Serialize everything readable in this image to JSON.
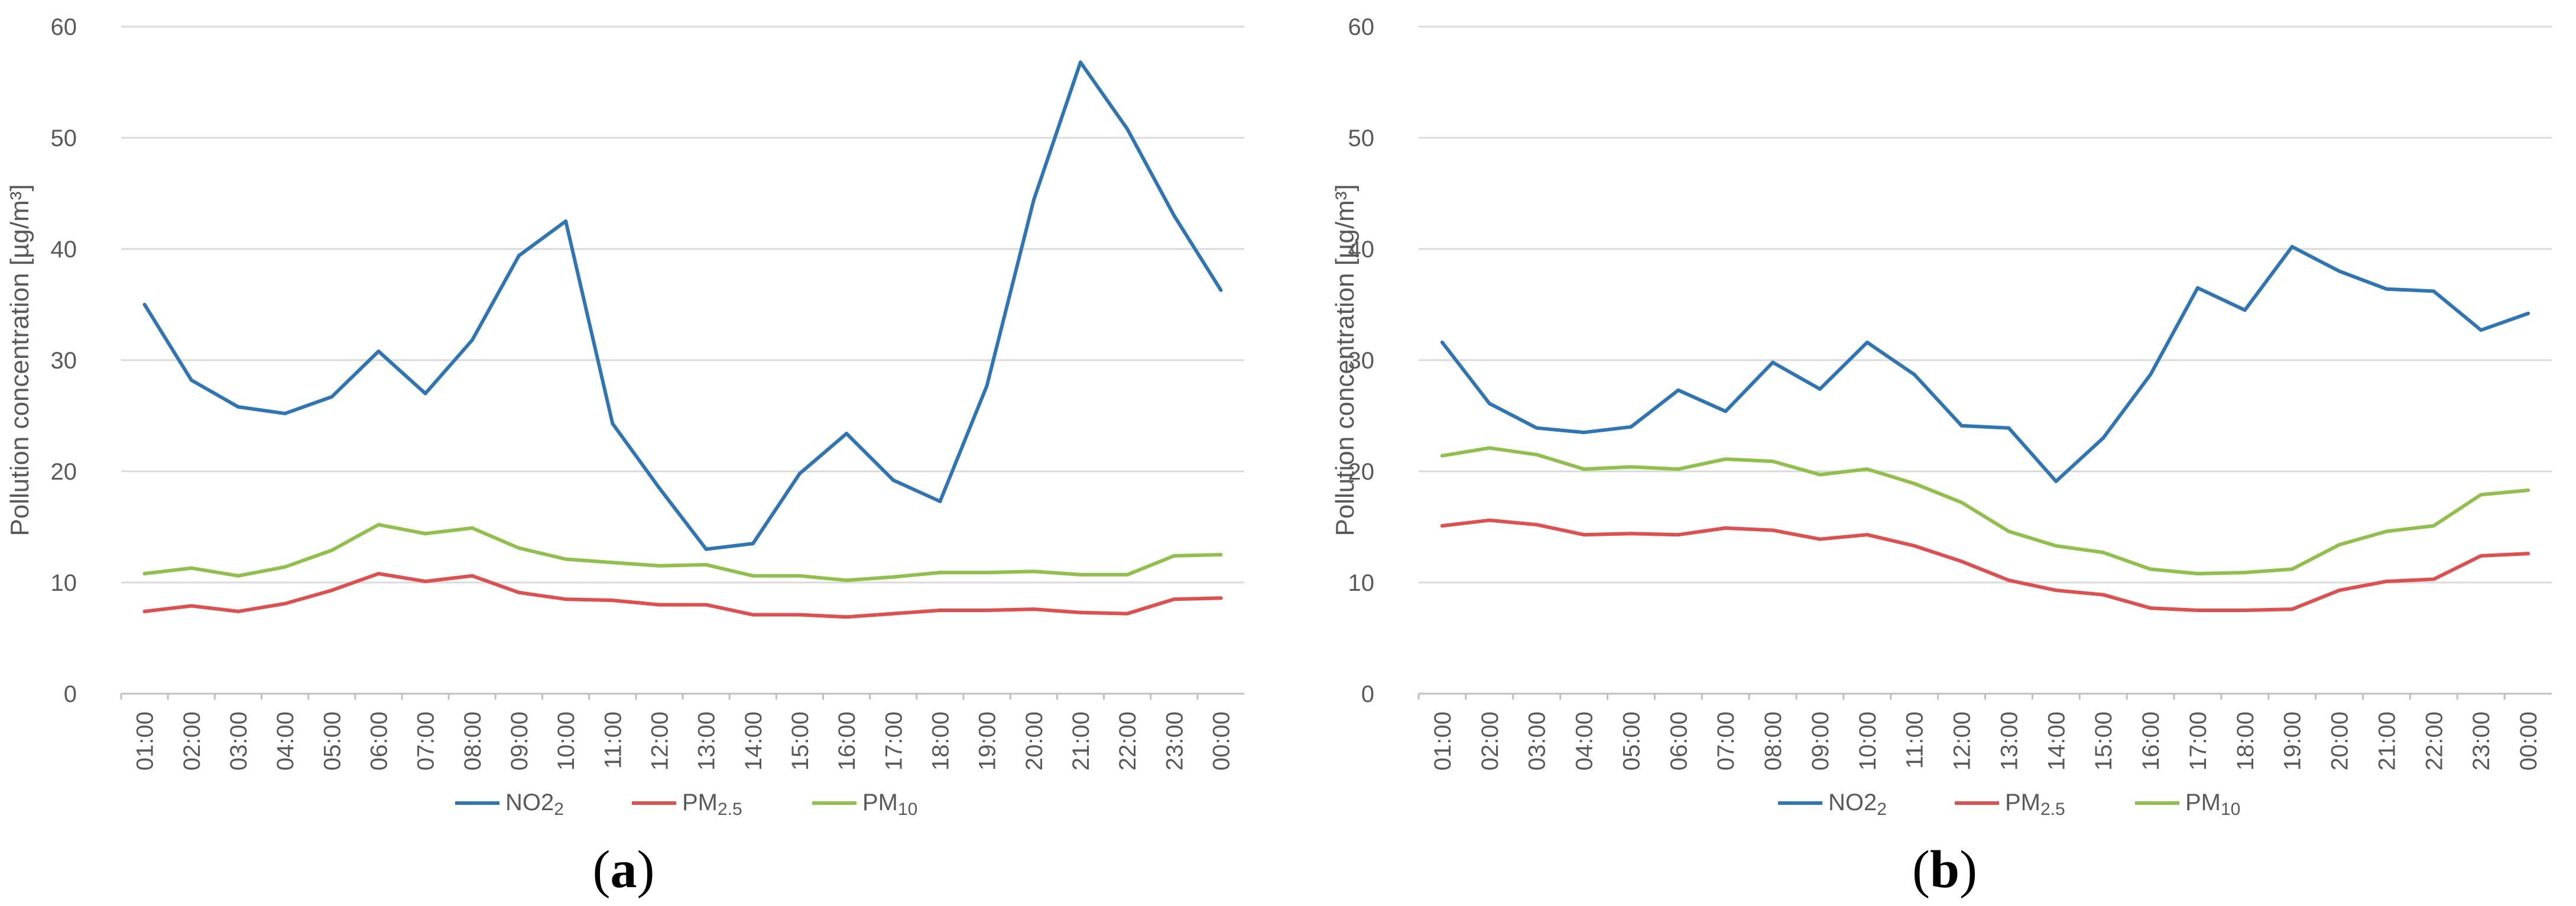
{
  "figure_title": "",
  "colors": {
    "NO2": "#2e75b6",
    "PM2.5": "#e04e4e",
    "PM10": "#8fc04a"
  },
  "legend": [
    {
      "key": "NO2",
      "main": "NO2",
      "sub": "2"
    },
    {
      "key": "PM2.5",
      "main": "PM",
      "sub": "2.5"
    },
    {
      "key": "PM10",
      "main": "PM",
      "sub": "10"
    }
  ],
  "chart_data": [
    {
      "type": "line",
      "panel_label": "a",
      "title": "",
      "xlabel": "",
      "ylabel": "Pollution concentration [µg/m³]",
      "ylim": [
        0,
        60
      ],
      "yticks": [
        0,
        10,
        20,
        30,
        40,
        50,
        60
      ],
      "grid": true,
      "legend_position": "bottom",
      "categories": [
        "01:00",
        "02:00",
        "03:00",
        "04:00",
        "05:00",
        "06:00",
        "07:00",
        "08:00",
        "09:00",
        "10:00",
        "11:00",
        "12:00",
        "13:00",
        "14:00",
        "15:00",
        "16:00",
        "17:00",
        "18:00",
        "19:00",
        "20:00",
        "21:00",
        "22:00",
        "23:00",
        "00:00"
      ],
      "series": [
        {
          "name": "NO2",
          "values": [
            35.0,
            28.2,
            25.8,
            25.2,
            26.7,
            30.8,
            27.0,
            31.8,
            39.4,
            42.5,
            24.3,
            18.5,
            13.0,
            13.5,
            19.8,
            23.4,
            19.2,
            17.3,
            27.7,
            44.4,
            56.8,
            50.8,
            43.0,
            36.3
          ]
        },
        {
          "name": "PM2.5",
          "values": [
            7.4,
            7.9,
            7.4,
            8.1,
            9.3,
            10.8,
            10.1,
            10.6,
            9.1,
            8.5,
            8.4,
            8.0,
            8.0,
            7.1,
            7.1,
            6.9,
            7.2,
            7.5,
            7.5,
            7.6,
            7.3,
            7.2,
            8.5,
            8.6
          ]
        },
        {
          "name": "PM10",
          "values": [
            10.8,
            11.3,
            10.6,
            11.4,
            12.9,
            15.2,
            14.4,
            14.9,
            13.1,
            12.1,
            11.8,
            11.5,
            11.6,
            10.6,
            10.6,
            10.2,
            10.5,
            10.9,
            10.9,
            11.0,
            10.7,
            10.7,
            12.4,
            12.5
          ]
        }
      ]
    },
    {
      "type": "line",
      "panel_label": "b",
      "title": "",
      "xlabel": "",
      "ylabel": "Pollution concentration [µg/m³]",
      "ylim": [
        0,
        60
      ],
      "yticks": [
        0,
        10,
        20,
        30,
        40,
        50,
        60
      ],
      "grid": true,
      "legend_position": "bottom",
      "categories": [
        "01:00",
        "02:00",
        "03:00",
        "04:00",
        "05:00",
        "06:00",
        "07:00",
        "08:00",
        "09:00",
        "10:00",
        "11:00",
        "12:00",
        "13:00",
        "14:00",
        "15:00",
        "16:00",
        "17:00",
        "18:00",
        "19:00",
        "20:00",
        "21:00",
        "22:00",
        "23:00",
        "00:00"
      ],
      "series": [
        {
          "name": "NO2",
          "values": [
            31.6,
            26.1,
            23.9,
            23.5,
            24.0,
            27.3,
            25.4,
            29.8,
            27.4,
            31.6,
            28.7,
            24.1,
            23.9,
            19.1,
            23.0,
            28.7,
            36.5,
            34.5,
            40.2,
            38.0,
            36.4,
            36.2,
            32.7,
            34.2
          ]
        },
        {
          "name": "PM2.5",
          "values": [
            15.1,
            15.6,
            15.2,
            14.3,
            14.4,
            14.3,
            14.9,
            14.7,
            13.9,
            14.3,
            13.3,
            11.9,
            10.2,
            9.3,
            8.9,
            7.7,
            7.5,
            7.5,
            7.6,
            9.3,
            10.1,
            10.3,
            12.4,
            12.6
          ]
        },
        {
          "name": "PM10",
          "values": [
            21.4,
            22.1,
            21.5,
            20.2,
            20.4,
            20.2,
            21.1,
            20.9,
            19.7,
            20.2,
            18.9,
            17.2,
            14.6,
            13.3,
            12.7,
            11.2,
            10.8,
            10.9,
            11.2,
            13.4,
            14.6,
            15.1,
            17.9,
            18.3
          ]
        }
      ]
    }
  ]
}
